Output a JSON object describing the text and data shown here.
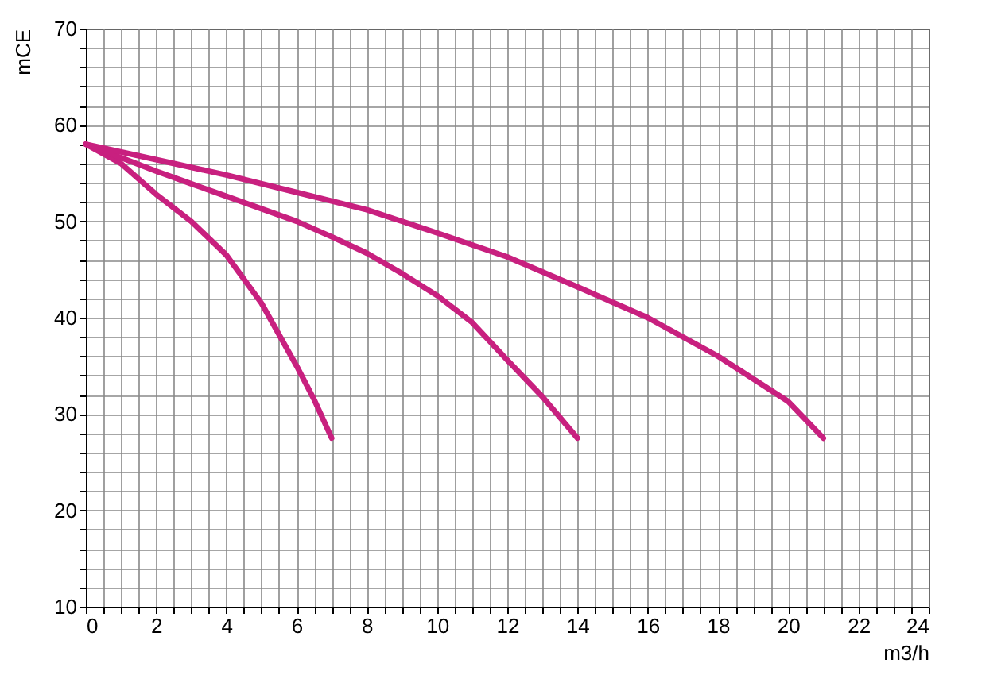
{
  "chart_data": {
    "type": "line",
    "xlabel": "m3/h",
    "ylabel": "mCE",
    "xlim": [
      0,
      24
    ],
    "ylim": [
      10,
      70
    ],
    "xticks": [
      0,
      {
        "value": 0.5,
        "label": null
      },
      {
        "value": 1,
        "label": null
      },
      {
        "value": 1.5,
        "label": null
      },
      2,
      {
        "value": 2.5,
        "label": null
      },
      {
        "value": 3,
        "label": null
      },
      {
        "value": 3.5,
        "label": null
      },
      4,
      {
        "value": 4.5,
        "label": null
      },
      {
        "value": 5,
        "label": null
      },
      {
        "value": 5.5,
        "label": null
      },
      6,
      {
        "value": 6.5,
        "label": null
      },
      {
        "value": 7,
        "label": null
      },
      {
        "value": 7.5,
        "label": null
      },
      8,
      {
        "value": 8.5,
        "label": null
      },
      {
        "value": 9,
        "label": null
      },
      {
        "value": 9.5,
        "label": null
      },
      10,
      {
        "value": 10.5,
        "label": null
      },
      {
        "value": 11,
        "label": null
      },
      {
        "value": 11.5,
        "label": null
      },
      12,
      {
        "value": 12.5,
        "label": null
      },
      {
        "value": 13,
        "label": null
      },
      {
        "value": 13.5,
        "label": null
      },
      14,
      {
        "value": 14.5,
        "label": null
      },
      {
        "value": 15,
        "label": null
      },
      {
        "value": 15.5,
        "label": null
      },
      16,
      {
        "value": 16.5,
        "label": null
      },
      {
        "value": 17,
        "label": null
      },
      {
        "value": 17.5,
        "label": null
      },
      18,
      {
        "value": 18.5,
        "label": null
      },
      {
        "value": 19,
        "label": null
      },
      {
        "value": 19.5,
        "label": null
      },
      20,
      {
        "value": 20.5,
        "label": null
      },
      {
        "value": 21,
        "label": null
      },
      {
        "value": 21.5,
        "label": null
      },
      22,
      {
        "value": 22.5,
        "label": null
      },
      {
        "value": 23,
        "label": null
      },
      {
        "value": 23.5,
        "label": null
      },
      24
    ],
    "yticks": [
      10,
      {
        "value": 12,
        "label": null
      },
      {
        "value": 14,
        "label": null
      },
      {
        "value": 16,
        "label": null
      },
      {
        "value": 18,
        "label": null
      },
      20,
      {
        "value": 22,
        "label": null
      },
      {
        "value": 24,
        "label": null
      },
      {
        "value": 26,
        "label": null
      },
      {
        "value": 28,
        "label": null
      },
      30,
      {
        "value": 32,
        "label": null
      },
      {
        "value": 34,
        "label": null
      },
      {
        "value": 36,
        "label": null
      },
      {
        "value": 38,
        "label": null
      },
      40,
      {
        "value": 42,
        "label": null
      },
      {
        "value": 44,
        "label": null
      },
      {
        "value": 46,
        "label": null
      },
      {
        "value": 48,
        "label": null
      },
      50,
      {
        "value": 52,
        "label": null
      },
      {
        "value": 54,
        "label": null
      },
      {
        "value": 56,
        "label": null
      },
      {
        "value": 58,
        "label": null
      },
      60,
      {
        "value": 62,
        "label": null
      },
      {
        "value": 64,
        "label": null
      },
      {
        "value": 66,
        "label": null
      },
      {
        "value": 68,
        "label": null
      },
      70
    ],
    "grid": true,
    "legend": false,
    "series": [
      {
        "color": "#c8207f",
        "x": [
          0,
          1,
          2,
          3,
          4,
          5,
          6,
          6.5,
          7
        ],
        "values": [
          58,
          56,
          52.8,
          50,
          46.5,
          41.5,
          35,
          31.5,
          27.5
        ]
      },
      {
        "color": "#c8207f",
        "x": [
          0,
          1,
          2,
          3,
          4,
          5,
          6,
          7,
          8,
          9,
          10,
          11,
          12,
          13,
          14
        ],
        "values": [
          58,
          56.6,
          55.2,
          53.9,
          52.6,
          51.3,
          50,
          48.4,
          46.7,
          44.6,
          42.3,
          39.5,
          35.6,
          31.8,
          27.5
        ]
      },
      {
        "color": "#c8207f",
        "x": [
          0,
          2,
          4,
          6,
          8,
          10,
          12,
          14,
          16,
          18,
          20,
          21
        ],
        "values": [
          58,
          56.4,
          54.8,
          53,
          51.2,
          48.8,
          46.3,
          43.2,
          40,
          36,
          31.3,
          27.5
        ]
      }
    ]
  }
}
